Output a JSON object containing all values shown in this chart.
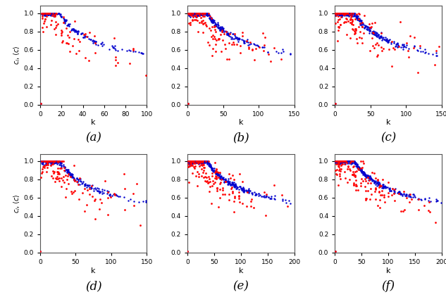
{
  "subplots": [
    {
      "label": "(a)",
      "xmax": 100,
      "xticks": [
        0,
        20,
        40,
        60,
        80,
        100
      ]
    },
    {
      "label": "(b)",
      "xmax": 150,
      "xticks": [
        0,
        50,
        100,
        150
      ]
    },
    {
      "label": "(c)",
      "xmax": 150,
      "xticks": [
        0,
        50,
        100,
        150
      ]
    },
    {
      "label": "(d)",
      "xmax": 150,
      "xticks": [
        0,
        50,
        100,
        150
      ]
    },
    {
      "label": "(e)",
      "xmax": 200,
      "xticks": [
        0,
        50,
        100,
        150,
        200
      ]
    },
    {
      "label": "(f)",
      "xmax": 200,
      "xticks": [
        0,
        50,
        100,
        150,
        200
      ]
    }
  ],
  "yticks": [
    0,
    0.2,
    0.4,
    0.6,
    0.8,
    1
  ],
  "ylabel": "c_i, <c>",
  "xlabel": "k",
  "red_color": "#ff0000",
  "blue_color": "#0000cd",
  "marker_size": 3,
  "background_color": "#ffffff",
  "label_fontsize": 12,
  "n_blue": [
    200,
    300,
    320,
    300,
    400,
    400
  ],
  "n_red": [
    80,
    120,
    130,
    120,
    160,
    160
  ],
  "blue_noise": [
    0.015,
    0.015,
    0.015,
    0.015,
    0.012,
    0.012
  ],
  "red_noise": [
    0.1,
    0.1,
    0.1,
    0.1,
    0.1,
    0.1
  ],
  "blue_scale": [
    0.28,
    0.28,
    0.28,
    0.28,
    0.28,
    0.28
  ],
  "red_scale": [
    0.28,
    0.28,
    0.28,
    0.28,
    0.28,
    0.28
  ]
}
